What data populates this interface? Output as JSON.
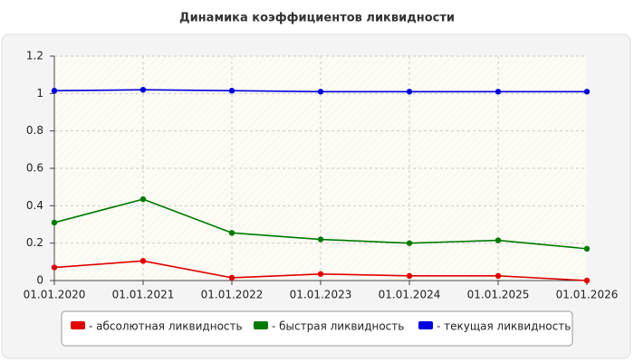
{
  "chart_data": {
    "type": "line",
    "title": "Динамика коэффициентов ликвидности",
    "categories": [
      "01.01.2020",
      "01.01.2021",
      "01.01.2022",
      "01.01.2023",
      "01.01.2024",
      "01.01.2025",
      "01.01.2026"
    ],
    "series": [
      {
        "name": "- абсолютная ликвидность",
        "color": "#e00000",
        "values": [
          0.07,
          0.105,
          0.015,
          0.035,
          0.025,
          0.025,
          0.0
        ]
      },
      {
        "name": "- быстрая ликвидность",
        "color": "#007a00",
        "values": [
          0.31,
          0.435,
          0.255,
          0.22,
          0.2,
          0.215,
          0.17
        ]
      },
      {
        "name": "- текущая ликвидность",
        "color": "#0000e0",
        "values": [
          1.015,
          1.02,
          1.015,
          1.01,
          1.01,
          1.01,
          1.01
        ]
      }
    ],
    "ylim": [
      0,
      1.2
    ],
    "yticks": [
      0,
      0.2,
      0.4,
      0.6,
      0.8,
      1,
      1.2
    ],
    "grid": true
  }
}
